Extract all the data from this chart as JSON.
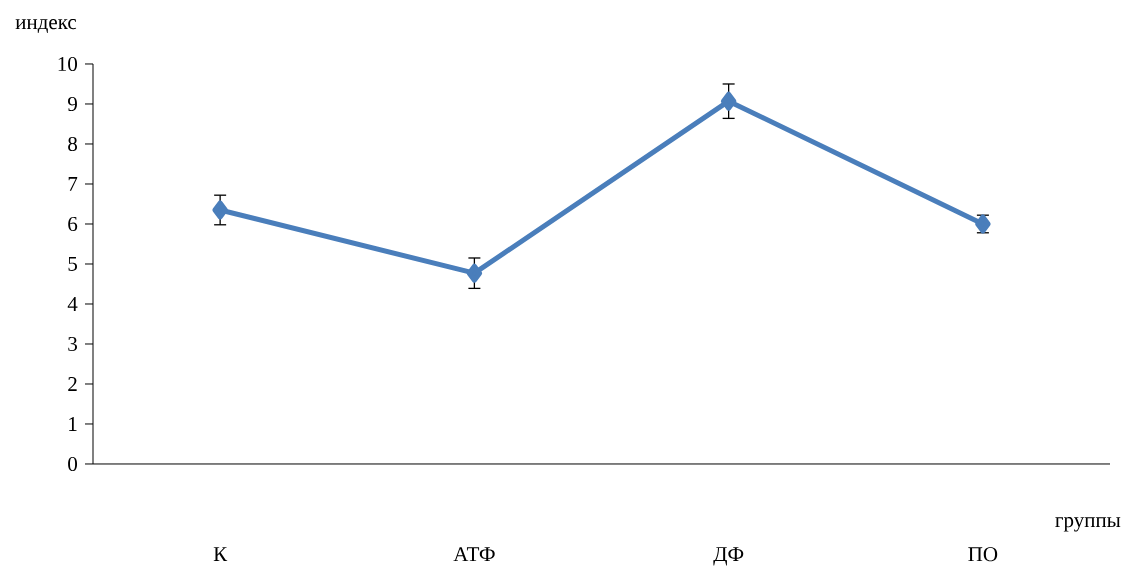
{
  "chart_data": {
    "type": "line",
    "xlabel": "группы",
    "ylabel": "индекс",
    "categories": [
      "К",
      "АТФ",
      "ДФ",
      "ПО"
    ],
    "series": [
      {
        "color": "#4a7ebb",
        "values": [
          6.35,
          4.77,
          9.07,
          6.0
        ],
        "errors": [
          0.37,
          0.38,
          0.43,
          0.22
        ]
      }
    ],
    "ylim": [
      0,
      10
    ],
    "yticks": [
      0,
      1,
      2,
      3,
      4,
      5,
      6,
      7,
      8,
      9,
      10
    ],
    "marker": "diamond",
    "line_style": "solid",
    "grid": false
  }
}
